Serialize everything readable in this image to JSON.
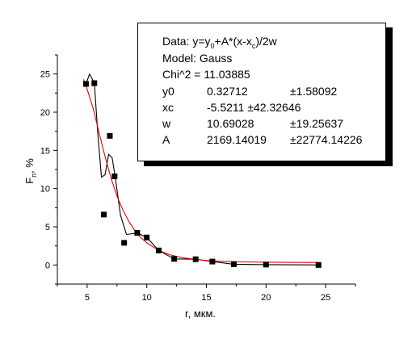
{
  "chart_data": {
    "type": "scatter",
    "xlabel": "r, мкм.",
    "ylabel": {
      "main": "F",
      "sub": "п",
      "tail": ", %"
    },
    "xlim": [
      2.5,
      27.5
    ],
    "ylim": [
      -2.5,
      27.5
    ],
    "x_ticks": [
      5,
      10,
      15,
      20,
      25
    ],
    "y_ticks": [
      0,
      5,
      10,
      15,
      20,
      25
    ],
    "grid": false,
    "series": [
      {
        "kind": "points",
        "marker": "square",
        "color": "#000000",
        "x": [
          4.9,
          5.6,
          6.4,
          6.9,
          7.3,
          8.1,
          9.2,
          10.0,
          11.0,
          12.3,
          14.1,
          15.5,
          17.3,
          20.0,
          24.4
        ],
        "y": [
          23.7,
          23.8,
          6.6,
          16.9,
          11.6,
          2.9,
          4.2,
          3.6,
          1.9,
          0.8,
          0.75,
          0.45,
          0.1,
          0.05,
          0.0
        ]
      },
      {
        "kind": "line",
        "color": "#000000",
        "x": [
          4.9,
          5.2,
          5.6,
          5.9,
          6.2,
          6.5,
          6.8,
          7.1,
          7.4,
          7.8,
          8.3,
          8.8,
          9.2,
          10.0,
          11.0,
          12.3,
          14.1,
          15.5,
          17.3,
          20.0,
          24.4
        ],
        "y": [
          23.7,
          25.0,
          23.8,
          17.0,
          11.5,
          11.8,
          14.5,
          14.0,
          11.0,
          6.5,
          4.0,
          4.1,
          4.2,
          3.6,
          1.9,
          0.8,
          0.75,
          0.45,
          0.1,
          0.05,
          0.0
        ]
      },
      {
        "kind": "line",
        "color": "#e8000a",
        "x": [
          4.7,
          5.0,
          5.5,
          6.0,
          6.5,
          7.0,
          7.5,
          8.0,
          8.5,
          9.0,
          9.5,
          10.0,
          11.0,
          12.0,
          13.0,
          14.0,
          15.0,
          16.0,
          18.0,
          20.0,
          22.0,
          24.5
        ],
        "y": [
          24.3,
          23.0,
          20.5,
          17.3,
          14.2,
          11.4,
          9.0,
          7.2,
          5.7,
          4.5,
          3.6,
          2.9,
          1.9,
          1.3,
          0.95,
          0.75,
          0.6,
          0.5,
          0.4,
          0.36,
          0.34,
          0.33
        ]
      }
    ]
  },
  "fit_box": {
    "data_prefix": "Data: y=y",
    "data_sub1": "0",
    "data_mid": "+A*(x-x",
    "data_sub2": "c",
    "data_suffix": ")/2w",
    "model": "Model: Gauss",
    "chi": "Chi^2 = 11.03885",
    "params": [
      {
        "name": "y0",
        "value": "0.32712",
        "error": "±1.58092"
      },
      {
        "name": "xc",
        "value": "-5.5211 ±42.32646",
        "error": ""
      },
      {
        "name": "w",
        "value": "10.69028",
        "error": "±19.25637"
      },
      {
        "name": "A",
        "value": "2169.14019",
        "error": "±22774.14226"
      }
    ]
  }
}
